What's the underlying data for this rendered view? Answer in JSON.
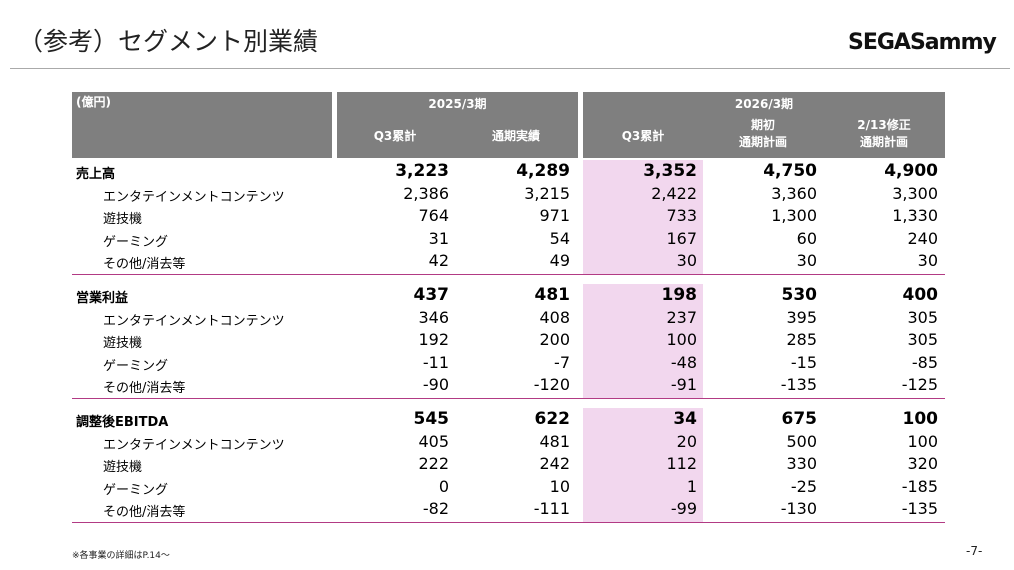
{
  "header": {
    "title": "（参考）セグメント別業績",
    "logo": "SEGASammy"
  },
  "table": {
    "unit": "(億円)",
    "periods": [
      "2025/3期",
      "2026/3期"
    ],
    "columns": [
      "Q3累計",
      "通期実績",
      "Q3累計",
      "期初\n通期計画",
      "2/13修正\n通期計画"
    ],
    "sections": [
      {
        "rows": [
          {
            "label": "売上高",
            "values": [
              "3,223",
              "4,289",
              "3,352",
              "4,750",
              "4,900"
            ]
          },
          {
            "label": "エンタテインメントコンテンツ",
            "values": [
              "2,386",
              "3,215",
              "2,422",
              "3,360",
              "3,300"
            ]
          },
          {
            "label": "遊技機",
            "values": [
              "764",
              "971",
              "733",
              "1,300",
              "1,330"
            ]
          },
          {
            "label": "ゲーミング",
            "values": [
              "31",
              "54",
              "167",
              "60",
              "240"
            ]
          },
          {
            "label": "その他/消去等",
            "values": [
              "42",
              "49",
              "30",
              "30",
              "30"
            ]
          }
        ]
      },
      {
        "rows": [
          {
            "label": "営業利益",
            "values": [
              "437",
              "481",
              "198",
              "530",
              "400"
            ]
          },
          {
            "label": "エンタテインメントコンテンツ",
            "values": [
              "346",
              "408",
              "237",
              "395",
              "305"
            ]
          },
          {
            "label": "遊技機",
            "values": [
              "192",
              "200",
              "100",
              "285",
              "305"
            ]
          },
          {
            "label": "ゲーミング",
            "values": [
              "-11",
              "-7",
              "-48",
              "-15",
              "-85"
            ]
          },
          {
            "label": "その他/消去等",
            "values": [
              "-90",
              "-120",
              "-91",
              "-135",
              "-125"
            ]
          }
        ]
      },
      {
        "rows": [
          {
            "label": "調整後EBITDA",
            "values": [
              "545",
              "622",
              "34",
              "675",
              "100"
            ]
          },
          {
            "label": "エンタテインメントコンテンツ",
            "values": [
              "405",
              "481",
              "20",
              "500",
              "100"
            ]
          },
          {
            "label": "遊技機",
            "values": [
              "222",
              "242",
              "112",
              "330",
              "320"
            ]
          },
          {
            "label": "ゲーミング",
            "values": [
              "0",
              "10",
              "1",
              "-25",
              "-185"
            ]
          },
          {
            "label": "その他/消去等",
            "values": [
              "-82",
              "-111",
              "-99",
              "-130",
              "-135"
            ]
          }
        ]
      }
    ]
  },
  "footnote": "※各事業の詳細はP.14～",
  "page_number": "-7-"
}
